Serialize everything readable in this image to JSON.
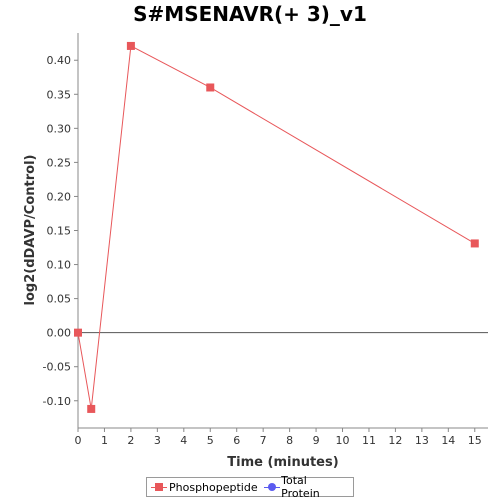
{
  "chart_data": {
    "type": "line",
    "title": "S#MSENAVR(+ 3)_v1",
    "xlabel": "Time (minutes)",
    "ylabel": "log2(dDAVP/Control)",
    "xlim": [
      0,
      15.5
    ],
    "ylim": [
      -0.14,
      0.44
    ],
    "x_ticks": [
      0,
      1,
      2,
      3,
      4,
      5,
      6,
      7,
      8,
      9,
      10,
      11,
      12,
      13,
      14,
      15
    ],
    "x_tick_labels": [
      "0",
      "1",
      "2",
      "3",
      "4",
      "5",
      "6",
      "7",
      "8",
      "9",
      "10",
      "11",
      "12",
      "13",
      "14",
      "15"
    ],
    "y_ticks": [
      -0.1,
      -0.05,
      0.0,
      0.05,
      0.1,
      0.15,
      0.2,
      0.25,
      0.3,
      0.35,
      0.4
    ],
    "y_tick_labels": [
      "-0.10",
      "-0.05",
      "0.00",
      "0.05",
      "0.10",
      "0.15",
      "0.20",
      "0.25",
      "0.30",
      "0.35",
      "0.40"
    ],
    "series": [
      {
        "name": "Phosphopeptide",
        "color": "#e8575a",
        "marker": "square",
        "x": [
          0,
          0.5,
          2,
          5,
          15
        ],
        "y": [
          0.0,
          -0.112,
          0.421,
          0.36,
          0.131
        ]
      }
    ],
    "legend": {
      "placement": "bottom-center",
      "entries": [
        {
          "name": "Phosphopeptide",
          "color": "#e8575a",
          "marker": "square"
        },
        {
          "name": "Total Protein",
          "color": "#5b5bf0",
          "marker": "circle"
        }
      ]
    },
    "zero_line": true,
    "grid": false
  }
}
